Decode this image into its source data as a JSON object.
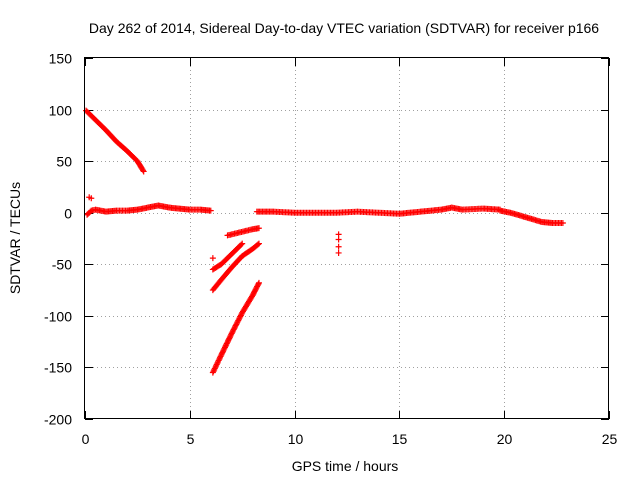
{
  "chart_data": {
    "type": "scatter",
    "title": "Day 262 of 2014, Sidereal Day-to-day VTEC variation (SDTVAR) for receiver p166",
    "xlabel": "GPS time / hours",
    "ylabel": "SDTVAR / TECUs",
    "xlim": [
      0,
      25
    ],
    "ylim": [
      -200,
      150
    ],
    "xticks": [
      0,
      5,
      10,
      15,
      20,
      25
    ],
    "yticks": [
      -200,
      -150,
      -100,
      -50,
      0,
      50,
      100,
      150
    ],
    "grid": true,
    "marker": "+",
    "color": "#ff0000",
    "series": [
      {
        "name": "arc-high-descending",
        "x": [
          0.05,
          0.5,
          1.0,
          1.5,
          2.0,
          2.5,
          2.8
        ],
        "y": [
          99,
          90,
          80,
          69,
          60,
          50,
          40
        ]
      },
      {
        "name": "arc-near-zero-early",
        "x": [
          0.1,
          0.3,
          0.5,
          1.0,
          1.5,
          2.0,
          2.5,
          3.0,
          3.5,
          4.0,
          4.5,
          5.0,
          5.5,
          6.0
        ],
        "y": [
          -2,
          2,
          3,
          1,
          2,
          2,
          3,
          5,
          7,
          5,
          4,
          3,
          3,
          2
        ]
      },
      {
        "name": "arc-spike-start",
        "x": [
          0.2,
          0.3
        ],
        "y": [
          15,
          14
        ]
      },
      {
        "name": "arc-steep-low",
        "x": [
          6.1,
          6.5,
          7.0,
          7.5,
          8.0,
          8.3
        ],
        "y": [
          -155,
          -138,
          -117,
          -97,
          -80,
          -68
        ]
      },
      {
        "name": "arc-mid-low-1",
        "x": [
          6.1,
          6.5,
          7.0,
          7.5,
          8.0,
          8.3
        ],
        "y": [
          -75,
          -65,
          -53,
          -42,
          -35,
          -30
        ]
      },
      {
        "name": "arc-mid-low-2",
        "x": [
          6.1,
          6.5,
          7.0,
          7.5
        ],
        "y": [
          -55,
          -50,
          -40,
          -30
        ]
      },
      {
        "name": "arc-mid-low-3",
        "x": [
          6.8,
          7.2,
          7.6,
          8.0,
          8.3
        ],
        "y": [
          -22,
          -20,
          -18,
          -16,
          -15
        ]
      },
      {
        "name": "arc-isolated-6h",
        "x": [
          6.1
        ],
        "y": [
          -44
        ]
      },
      {
        "name": "arc-isolated-12h",
        "x": [
          12.1,
          12.1,
          12.1,
          12.1
        ],
        "y": [
          -21,
          -26,
          -33,
          -39
        ]
      },
      {
        "name": "arc-near-zero-late",
        "x": [
          8.2,
          9.0,
          10.0,
          11.0,
          12.0,
          13.0,
          14.0,
          15.0,
          16.0,
          17.0,
          17.5,
          18.0,
          19.0,
          19.8
        ],
        "y": [
          1,
          1,
          0,
          0,
          0,
          1,
          0,
          -1,
          1,
          3,
          5,
          3,
          4,
          3
        ]
      },
      {
        "name": "arc-descending-end",
        "x": [
          19.8,
          20.3,
          20.8,
          21.3,
          21.8,
          22.3,
          22.8
        ],
        "y": [
          2,
          0,
          -3,
          -6,
          -9,
          -10,
          -10
        ]
      }
    ]
  }
}
